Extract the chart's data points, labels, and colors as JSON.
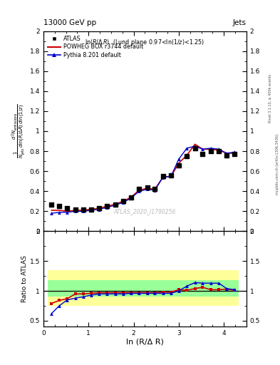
{
  "title_left": "13000 GeV pp",
  "title_right": "Jets",
  "annotation": "ln(R/Δ R)  (Lund plane 0.97<ln(1/z)<1.25)",
  "watermark": "ATLAS_2020_I1790256",
  "right_label": "Rivet 3.1.10, ≥ 400k events",
  "right_label2": "mcplots.cern.ch [arXiv:1306.3436]",
  "ylabel_main": "d² N_emissions\n½\nN_jets dln (R/Δ R) ln (1/z)",
  "ylabel_ratio": "Ratio to ATLAS",
  "xlabel": "ln (R/Δ R)",
  "atlas_x": [
    0.18,
    0.35,
    0.53,
    0.71,
    0.88,
    1.06,
    1.24,
    1.41,
    1.59,
    1.77,
    1.94,
    2.12,
    2.3,
    2.47,
    2.65,
    2.83,
    3.0,
    3.18,
    3.36,
    3.53,
    3.71,
    3.89,
    4.06,
    4.24
  ],
  "atlas_y": [
    0.27,
    0.25,
    0.23,
    0.22,
    0.22,
    0.22,
    0.23,
    0.25,
    0.27,
    0.3,
    0.34,
    0.42,
    0.44,
    0.42,
    0.55,
    0.56,
    0.66,
    0.75,
    0.83,
    0.77,
    0.8,
    0.8,
    0.76,
    0.77
  ],
  "powheg_x": [
    0.18,
    0.35,
    0.53,
    0.71,
    0.88,
    1.06,
    1.24,
    1.41,
    1.59,
    1.77,
    1.94,
    2.12,
    2.3,
    2.47,
    2.65,
    2.83,
    3.0,
    3.18,
    3.36,
    3.53,
    3.71,
    3.89,
    4.06,
    4.24
  ],
  "powheg_y": [
    0.21,
    0.21,
    0.2,
    0.21,
    0.21,
    0.22,
    0.23,
    0.25,
    0.27,
    0.3,
    0.34,
    0.41,
    0.43,
    0.42,
    0.54,
    0.55,
    0.68,
    0.76,
    0.87,
    0.82,
    0.82,
    0.81,
    0.78,
    0.78
  ],
  "pythia_x": [
    0.18,
    0.35,
    0.53,
    0.71,
    0.88,
    1.06,
    1.24,
    1.41,
    1.59,
    1.77,
    1.94,
    2.12,
    2.3,
    2.47,
    2.65,
    2.83,
    3.0,
    3.18,
    3.36,
    3.53,
    3.71,
    3.89,
    4.06,
    4.24
  ],
  "pythia_y": [
    0.18,
    0.19,
    0.19,
    0.2,
    0.2,
    0.21,
    0.22,
    0.24,
    0.26,
    0.29,
    0.33,
    0.4,
    0.42,
    0.41,
    0.54,
    0.55,
    0.72,
    0.83,
    0.85,
    0.82,
    0.83,
    0.82,
    0.78,
    0.79
  ],
  "band_x_edges": [
    0.09,
    0.265,
    0.44,
    0.62,
    0.795,
    0.97,
    1.15,
    1.325,
    1.5,
    1.68,
    1.855,
    2.03,
    2.21,
    2.385,
    2.56,
    2.74,
    2.915,
    3.09,
    3.27,
    3.445,
    3.62,
    3.8,
    3.975,
    4.15,
    4.33
  ],
  "band_yellow_low": 0.75,
  "band_yellow_high": 1.35,
  "band_green_low": 0.9,
  "band_green_high": 1.18,
  "ratio_powheg_y": [
    0.79,
    0.84,
    0.87,
    0.95,
    0.95,
    0.96,
    0.97,
    0.97,
    0.97,
    0.97,
    0.97,
    0.97,
    0.97,
    0.97,
    0.98,
    0.98,
    1.02,
    1.01,
    1.04,
    1.06,
    1.02,
    1.02,
    1.03,
    1.01
  ],
  "ratio_pythia_y": [
    0.62,
    0.75,
    0.85,
    0.88,
    0.9,
    0.93,
    0.95,
    0.95,
    0.95,
    0.95,
    0.96,
    0.96,
    0.96,
    0.96,
    0.96,
    0.96,
    1.0,
    1.08,
    1.14,
    1.13,
    1.13,
    1.13,
    1.04,
    1.02
  ],
  "xlim": [
    0,
    4.5
  ],
  "ylim_main": [
    0,
    2.0
  ],
  "ylim_ratio": [
    0.4,
    2.0
  ],
  "yticks_main": [
    0,
    0.2,
    0.4,
    0.6,
    0.8,
    1.0,
    1.2,
    1.4,
    1.6,
    1.8,
    2.0
  ],
  "ytick_labels_main": [
    "0",
    "0.2",
    "0.4",
    "0.6",
    "0.8",
    "1",
    "1.2",
    "1.4",
    "1.6",
    "1.8",
    "2"
  ],
  "yticks_ratio": [
    0.5,
    1.0,
    1.5,
    2.0
  ],
  "ytick_labels_ratio": [
    "0.5",
    "1",
    "1.5",
    "2"
  ],
  "color_atlas": "#000000",
  "color_powheg": "#cc0000",
  "color_pythia": "#0000cc",
  "color_yellow": "#ffff99",
  "color_green": "#99ff99",
  "legend_entries": [
    "ATLAS",
    "POWHEG BOX r3744 default",
    "Pythia 8.201 default"
  ]
}
